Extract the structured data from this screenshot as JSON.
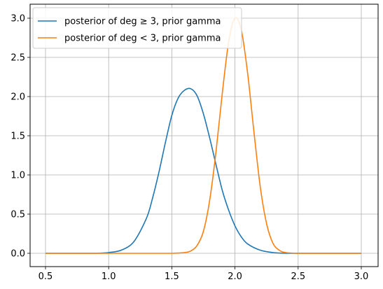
{
  "chart_data": {
    "type": "line",
    "title": "",
    "xlabel": "",
    "ylabel": "",
    "xlim": [
      0.5,
      3.0
    ],
    "ylim": [
      0.0,
      3.0
    ],
    "xticks": [
      0.5,
      1.0,
      1.5,
      2.0,
      2.5,
      3.0
    ],
    "yticks": [
      0.0,
      0.5,
      1.0,
      1.5,
      2.0,
      2.5,
      3.0
    ],
    "xtick_labels": [
      "0.5",
      "1.0",
      "1.5",
      "2.0",
      "2.5",
      "3.0"
    ],
    "ytick_labels": [
      "0.0",
      "0.5",
      "1.0",
      "1.5",
      "2.0",
      "2.5",
      "3.0"
    ],
    "grid": true,
    "legend_placement": "upper-left",
    "series": [
      {
        "name": "posterior of deg ≥ 3, prior gamma",
        "color": "#1f77b4",
        "x": [
          0.5,
          0.6,
          0.7,
          0.8,
          0.9,
          1.0,
          1.1,
          1.2,
          1.3,
          1.35,
          1.4,
          1.45,
          1.5,
          1.55,
          1.6,
          1.65,
          1.7,
          1.75,
          1.8,
          1.85,
          1.9,
          1.95,
          2.0,
          2.05,
          2.1,
          2.2,
          2.3,
          2.4,
          2.5,
          2.6,
          2.8,
          3.0
        ],
        "values": [
          0.0,
          0.0,
          0.0,
          0.0,
          0.0,
          0.01,
          0.04,
          0.15,
          0.45,
          0.72,
          1.05,
          1.42,
          1.76,
          1.98,
          2.08,
          2.1,
          2.01,
          1.78,
          1.47,
          1.13,
          0.8,
          0.55,
          0.35,
          0.21,
          0.12,
          0.04,
          0.01,
          0.0,
          0.0,
          0.0,
          0.0,
          0.0
        ]
      },
      {
        "name": "posterior of deg < 3, prior gamma",
        "color": "#ff7f0e",
        "x": [
          0.5,
          0.8,
          1.0,
          1.2,
          1.4,
          1.5,
          1.6,
          1.65,
          1.7,
          1.75,
          1.8,
          1.85,
          1.9,
          1.95,
          2.0,
          2.05,
          2.1,
          2.15,
          2.2,
          2.25,
          2.3,
          2.35,
          2.4,
          2.5,
          2.6,
          2.8,
          3.0
        ],
        "values": [
          0.0,
          0.0,
          0.0,
          0.0,
          0.0,
          0.0,
          0.01,
          0.03,
          0.1,
          0.28,
          0.68,
          1.3,
          2.05,
          2.7,
          3.0,
          2.85,
          2.3,
          1.55,
          0.85,
          0.38,
          0.13,
          0.04,
          0.01,
          0.0,
          0.0,
          0.0,
          0.0
        ]
      }
    ]
  }
}
